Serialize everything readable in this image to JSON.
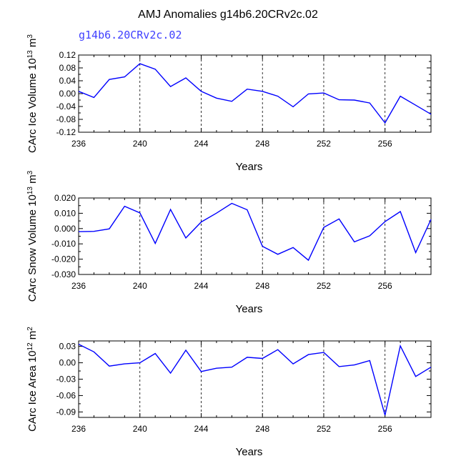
{
  "title": "AMJ Anomalies g14b6.20CRv2c.02",
  "subtitle": "g14b6.20CRv2c.02",
  "colors": {
    "series": "#0000ff",
    "subtitle": "#4040ff",
    "axis": "#000000"
  },
  "chart_data": [
    {
      "type": "line",
      "ylabel": "CArc Ice Volume 10^13 m^3",
      "ylabel_base": "CArc Ice Volume 10",
      "ylabel_exp1": "13",
      "ylabel_mid": " m",
      "ylabel_exp2": "3",
      "xlabel": "Years",
      "xlim": [
        236,
        259
      ],
      "ylim": [
        -0.12,
        0.12
      ],
      "xticks": [
        "236",
        "240",
        "244",
        "248",
        "252",
        "256"
      ],
      "yticks": [
        "0.12",
        "0.08",
        "0.04",
        "0.00",
        "-0.04",
        "-0.08",
        "-0.12"
      ],
      "grid_x": [
        240,
        244,
        248,
        252,
        256
      ],
      "x": [
        236,
        237,
        238,
        239,
        240,
        241,
        242,
        243,
        244,
        245,
        246,
        247,
        248,
        249,
        250,
        251,
        252,
        253,
        254,
        255,
        256,
        257,
        258,
        259
      ],
      "values": [
        0.007,
        -0.012,
        0.044,
        0.052,
        0.093,
        0.076,
        0.022,
        0.049,
        0.007,
        -0.014,
        -0.024,
        0.014,
        0.007,
        -0.008,
        -0.041,
        -0.001,
        0.002,
        -0.019,
        -0.02,
        -0.029,
        -0.091,
        -0.008,
        -0.036,
        -0.064
      ]
    },
    {
      "type": "line",
      "ylabel": "CArc Snow Volume 10^13 m^3",
      "ylabel_base": "CArc Snow Volume 10",
      "ylabel_exp1": "13",
      "ylabel_mid": " m",
      "ylabel_exp2": "3",
      "xlabel": "Years",
      "xlim": [
        236,
        259
      ],
      "ylim": [
        -0.03,
        0.02
      ],
      "xticks": [
        "236",
        "240",
        "244",
        "248",
        "252",
        "256"
      ],
      "yticks": [
        "0.020",
        "0.010",
        "0.000",
        "-0.010",
        "-0.020",
        "-0.030"
      ],
      "grid_x": [
        240,
        244,
        248,
        252,
        256
      ],
      "x": [
        236,
        237,
        238,
        239,
        240,
        241,
        242,
        243,
        244,
        245,
        246,
        247,
        248,
        249,
        250,
        251,
        252,
        253,
        254,
        255,
        256,
        257,
        258,
        259
      ],
      "values": [
        -0.002,
        -0.0018,
        -0.0002,
        0.0146,
        0.0103,
        -0.0097,
        0.0125,
        -0.0061,
        0.0043,
        0.0101,
        0.0165,
        0.0123,
        -0.0116,
        -0.0168,
        -0.0124,
        -0.0207,
        0.0008,
        0.0063,
        -0.0087,
        -0.0047,
        0.0046,
        0.0111,
        -0.0157,
        0.006
      ]
    },
    {
      "type": "line",
      "ylabel": "CArc Ice Area 10^12 m^2",
      "ylabel_base": "CArc Ice Area 10",
      "ylabel_exp1": "12",
      "ylabel_mid": " m",
      "ylabel_exp2": "2",
      "xlabel": "Years",
      "xlim": [
        236,
        259
      ],
      "ylim": [
        -0.1,
        0.04
      ],
      "xticks": [
        "236",
        "240",
        "244",
        "248",
        "252",
        "256"
      ],
      "yticks": [
        "0.03",
        "0.00",
        "-0.03",
        "-0.06",
        "-0.09"
      ],
      "ytick_values": [
        0.03,
        0.0,
        -0.03,
        -0.06,
        -0.09
      ],
      "grid_x": [
        240,
        244,
        248,
        252,
        256
      ],
      "x": [
        236,
        237,
        238,
        239,
        240,
        241,
        242,
        243,
        244,
        245,
        246,
        247,
        248,
        249,
        250,
        251,
        252,
        253,
        254,
        255,
        256,
        257,
        258,
        259
      ],
      "values": [
        0.034,
        0.02,
        -0.006,
        -0.002,
        0.0,
        0.017,
        -0.019,
        0.023,
        -0.016,
        -0.01,
        -0.008,
        0.01,
        0.008,
        0.024,
        -0.002,
        0.015,
        0.019,
        -0.007,
        -0.004,
        0.004,
        -0.096,
        0.031,
        -0.025,
        -0.008
      ]
    }
  ]
}
